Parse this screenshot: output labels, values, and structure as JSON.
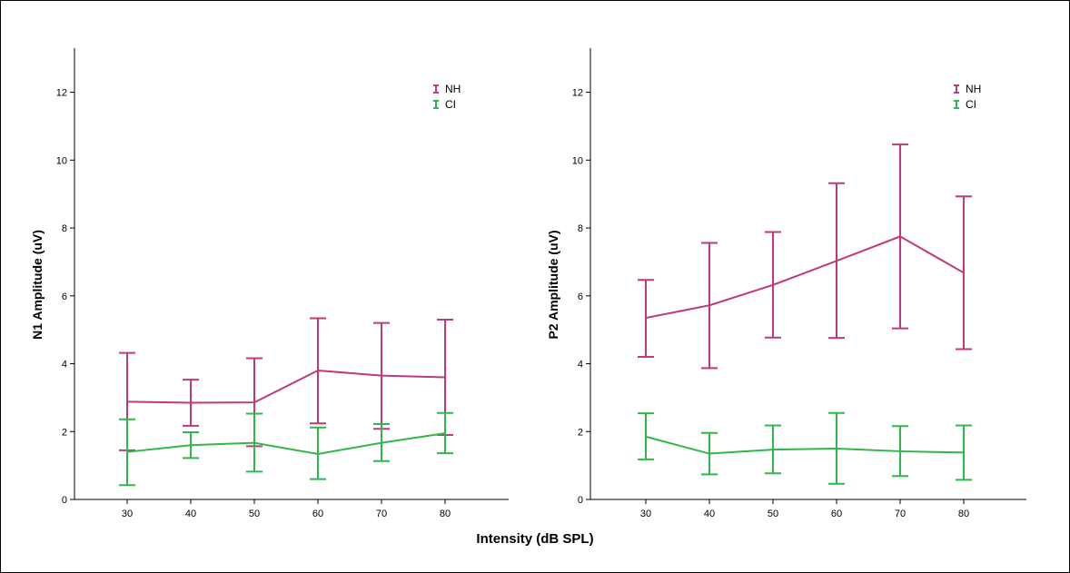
{
  "shared_xlabel": "Intensity (dB SPL)",
  "colors": {
    "NH": "#C0397A",
    "CI": "#2DB84A"
  },
  "chart_data": [
    {
      "type": "line",
      "ylabel": "N1 Amplitude (uV)",
      "x": [
        30,
        40,
        50,
        60,
        70,
        80
      ],
      "xticks": [
        "30",
        "40",
        "50",
        "60",
        "70",
        "80"
      ],
      "yticks": [
        "0",
        "2",
        "4",
        "6",
        "8",
        "10",
        "12"
      ],
      "ylim": [
        0,
        13.3
      ],
      "legend": "top-right",
      "series": [
        {
          "name": "NH",
          "values": [
            2.88,
            2.85,
            2.86,
            3.8,
            3.65,
            3.6
          ],
          "err_low": [
            1.45,
            2.17,
            1.57,
            2.24,
            2.08,
            1.9
          ],
          "err_high": [
            4.32,
            3.53,
            4.16,
            5.34,
            5.2,
            5.3
          ]
        },
        {
          "name": "CI",
          "values": [
            1.4,
            1.6,
            1.67,
            1.34,
            1.67,
            1.95
          ],
          "err_low": [
            0.42,
            1.22,
            0.82,
            0.6,
            1.13,
            1.36
          ],
          "err_high": [
            2.36,
            1.98,
            2.53,
            2.12,
            2.22,
            2.55
          ]
        }
      ]
    },
    {
      "type": "line",
      "ylabel": "P2 Amplitude (uV)",
      "x": [
        30,
        40,
        50,
        60,
        70,
        80
      ],
      "xticks": [
        "30",
        "40",
        "50",
        "60",
        "70",
        "80"
      ],
      "yticks": [
        "0",
        "2",
        "4",
        "6",
        "8",
        "10",
        "12"
      ],
      "ylim": [
        0,
        13.3
      ],
      "legend": "top-right",
      "series": [
        {
          "name": "NH",
          "values": [
            5.35,
            5.72,
            6.32,
            7.03,
            7.75,
            6.68
          ],
          "err_low": [
            4.2,
            3.87,
            4.77,
            4.76,
            5.04,
            4.43
          ],
          "err_high": [
            6.47,
            7.56,
            7.88,
            9.32,
            10.46,
            8.93
          ]
        },
        {
          "name": "CI",
          "values": [
            1.85,
            1.35,
            1.47,
            1.5,
            1.42,
            1.38
          ],
          "err_low": [
            1.18,
            0.74,
            0.77,
            0.46,
            0.69,
            0.58
          ],
          "err_high": [
            2.54,
            1.96,
            2.18,
            2.55,
            2.16,
            2.18
          ]
        }
      ]
    }
  ]
}
